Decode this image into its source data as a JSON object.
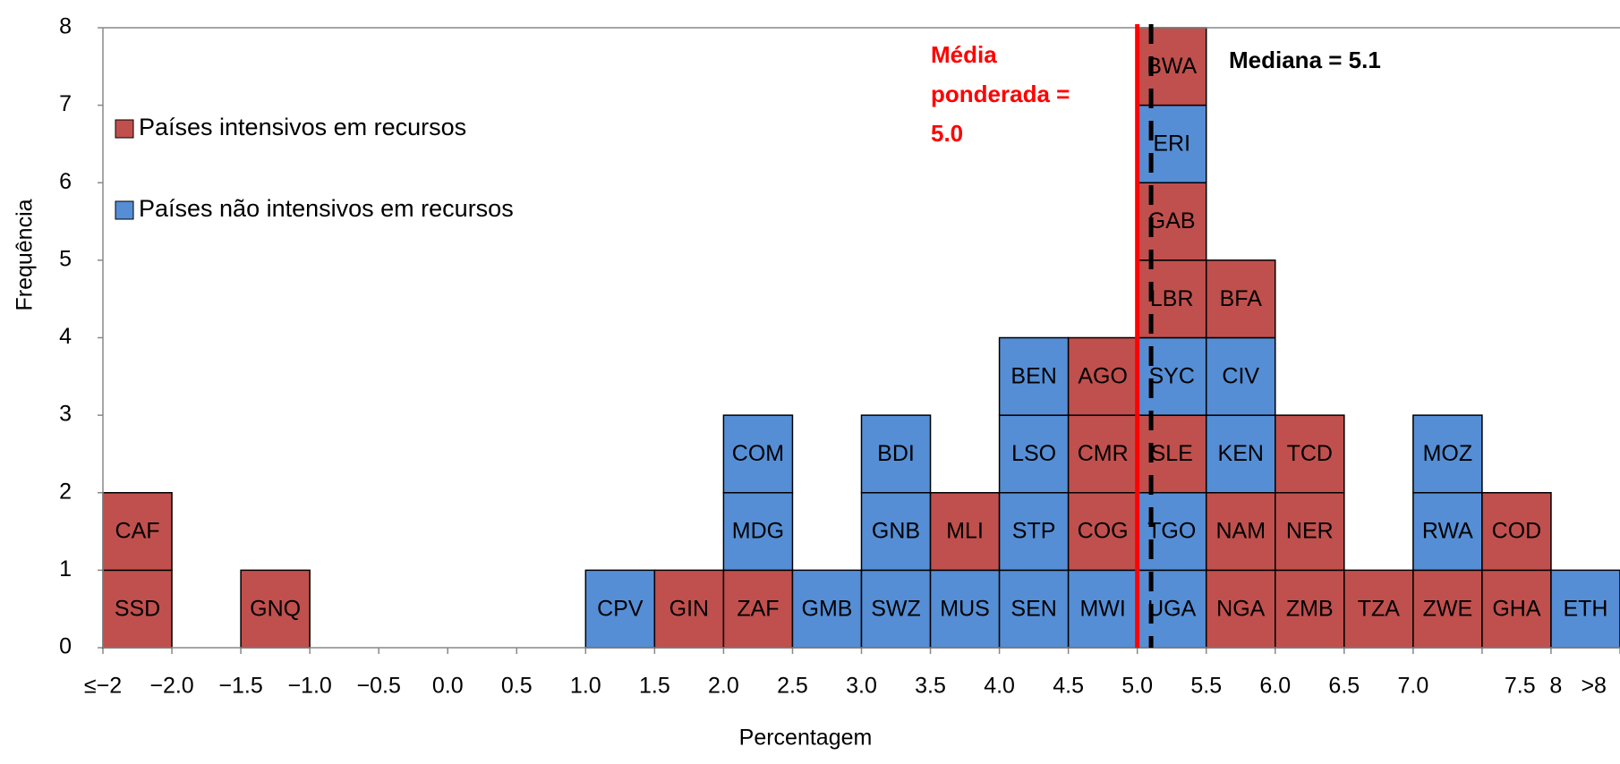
{
  "chart_data": {
    "type": "stacked_box_histogram",
    "x_label": "Percentagem",
    "y_label": "Frequência",
    "ylim": [
      0,
      8
    ],
    "yticks": [
      0,
      1,
      2,
      3,
      4,
      5,
      6,
      7,
      8
    ],
    "xticks": [
      "≤−2",
      {
        "value": -2,
        "label": "−2.0"
      },
      {
        "value": -1.5,
        "label": "−1.5"
      },
      {
        "value": -1,
        "label": "−1.0"
      },
      {
        "value": -0.5,
        "label": "−0.5"
      },
      {
        "value": 0,
        "label": "0.0"
      },
      0.5,
      {
        "value": 1,
        "label": "1.0"
      },
      1.5,
      {
        "value": 2,
        "label": "2.0"
      },
      2.5,
      {
        "value": 3,
        "label": "3.0"
      },
      3.5,
      {
        "value": 4,
        "label": "4.0"
      },
      4.5,
      {
        "value": 5,
        "label": "5.0"
      },
      5.5,
      {
        "value": 6,
        "label": "6.0"
      },
      6.5,
      {
        "value": 7,
        "label": "7.0"
      },
      7.5,
      8,
      ">8"
    ],
    "series": [
      {
        "name": "Países intensivos em recursos",
        "color": "#c0504d"
      },
      {
        "name": "Países não intensivos em recursos",
        "color": "#558ed5"
      }
    ],
    "values": [
      2,
      0,
      1,
      0,
      0,
      0,
      0,
      1,
      1,
      3,
      1,
      3,
      2,
      4,
      4,
      8,
      5,
      3,
      1,
      3,
      2,
      1
    ],
    "columns": [
      [
        {
          "label": "SSD",
          "series": 0
        },
        {
          "label": "CAF",
          "series": 0
        }
      ],
      [],
      [
        {
          "label": "GNQ",
          "series": 0
        }
      ],
      [],
      [],
      [],
      [],
      [
        {
          "label": "CPV",
          "series": 1
        }
      ],
      [
        {
          "label": "GIN",
          "series": 0
        }
      ],
      [
        {
          "label": "ZAF",
          "series": 0
        },
        {
          "label": "MDG",
          "series": 1
        },
        {
          "label": "COM",
          "series": 1
        }
      ],
      [
        {
          "label": "GMB",
          "series": 1
        }
      ],
      [
        {
          "label": "SWZ",
          "series": 1
        },
        {
          "label": "GNB",
          "series": 1
        },
        {
          "label": "BDI",
          "series": 1
        }
      ],
      [
        {
          "label": "MUS",
          "series": 1
        },
        {
          "label": "MLI",
          "series": 0
        }
      ],
      [
        {
          "label": "SEN",
          "series": 1
        },
        {
          "label": "STP",
          "series": 1
        },
        {
          "label": "LSO",
          "series": 1
        },
        {
          "label": "BEN",
          "series": 1
        }
      ],
      [
        {
          "label": "MWI",
          "series": 1
        },
        {
          "label": "COG",
          "series": 0
        },
        {
          "label": "CMR",
          "series": 0
        },
        {
          "label": "AGO",
          "series": 0
        }
      ],
      [
        {
          "label": "UGA",
          "series": 1
        },
        {
          "label": "TGO",
          "series": 1
        },
        {
          "label": "SLE",
          "series": 0
        },
        {
          "label": "SYC",
          "series": 1
        },
        {
          "label": "LBR",
          "series": 0
        },
        {
          "label": "GAB",
          "series": 0
        },
        {
          "label": "ERI",
          "series": 1
        },
        {
          "label": "BWA",
          "series": 0
        }
      ],
      [
        {
          "label": "NGA",
          "series": 0
        },
        {
          "label": "NAM",
          "series": 0
        },
        {
          "label": "KEN",
          "series": 1
        },
        {
          "label": "CIV",
          "series": 1
        },
        {
          "label": "BFA",
          "series": 0
        }
      ],
      [
        {
          "label": "ZMB",
          "series": 0
        },
        {
          "label": "NER",
          "series": 0
        },
        {
          "label": "TCD",
          "series": 0
        }
      ],
      [
        {
          "label": "TZA",
          "series": 0
        }
      ],
      [
        {
          "label": "ZWE",
          "series": 0
        },
        {
          "label": "RWA",
          "series": 1
        },
        {
          "label": "MOZ",
          "series": 1
        }
      ],
      [
        {
          "label": "GHA",
          "series": 0
        },
        {
          "label": "COD",
          "series": 0
        }
      ],
      [
        {
          "label": "ETH",
          "series": 1
        }
      ]
    ],
    "reference_lines": [
      {
        "value": 5.0,
        "label": [
          "Média",
          "ponderada =",
          "5.0"
        ],
        "color": "#ff0000",
        "style": "solid"
      },
      {
        "value": 5.1,
        "label": [
          "Mediana = 5.1"
        ],
        "color": "#000000",
        "style": "dashed"
      }
    ]
  }
}
